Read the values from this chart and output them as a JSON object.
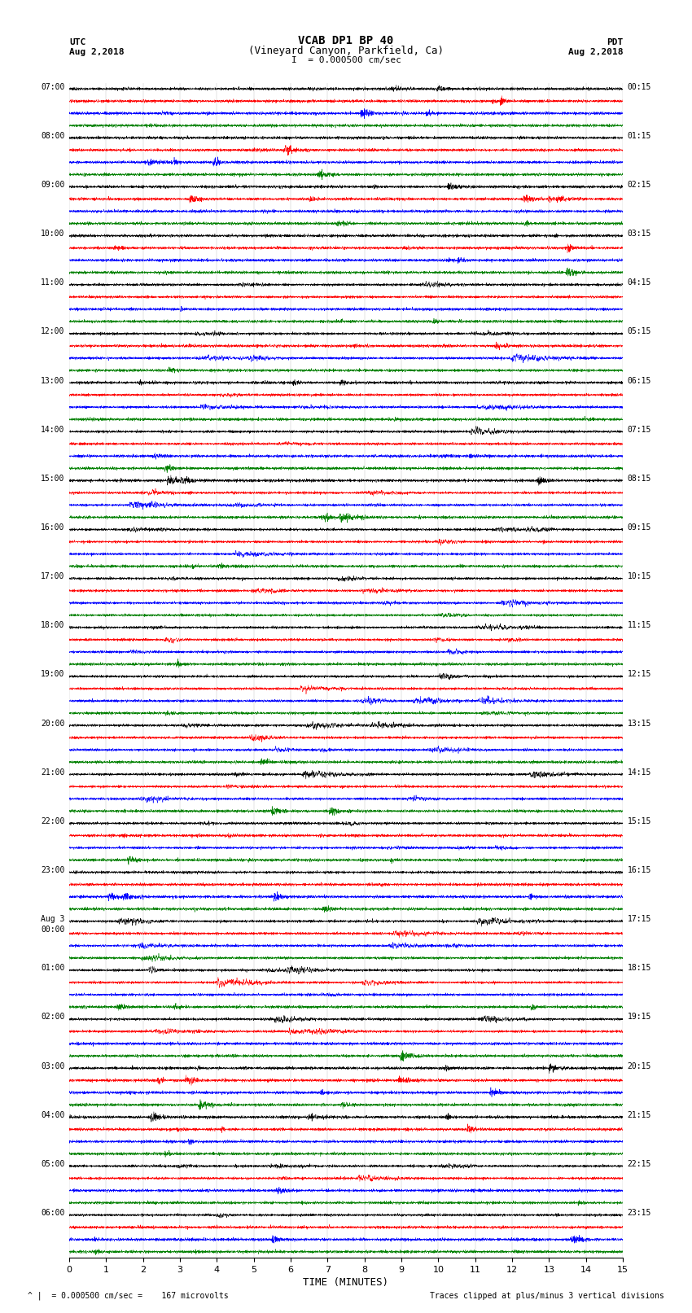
{
  "title_line1": "VCAB DP1 BP 40",
  "title_line2": "(Vineyard Canyon, Parkfield, Ca)",
  "scale_label": "I  = 0.000500 cm/sec",
  "utc_label": "UTC",
  "utc_date": "Aug 2,2018",
  "pdt_label": "PDT",
  "pdt_date": "Aug 2,2018",
  "xlabel": "TIME (MINUTES)",
  "footer_left": "^ |  = 0.000500 cm/sec =    167 microvolts",
  "footer_right": "Traces clipped at plus/minus 3 vertical divisions",
  "xlim": [
    0,
    15
  ],
  "xticks": [
    0,
    1,
    2,
    3,
    4,
    5,
    6,
    7,
    8,
    9,
    10,
    11,
    12,
    13,
    14,
    15
  ],
  "colors": [
    "black",
    "red",
    "blue",
    "green"
  ],
  "background_color": "white",
  "fig_width": 8.5,
  "fig_height": 16.13,
  "dpi": 100,
  "total_rows": 96,
  "utc_labels": [
    "07:00",
    "08:00",
    "09:00",
    "10:00",
    "11:00",
    "12:00",
    "13:00",
    "14:00",
    "15:00",
    "16:00",
    "17:00",
    "18:00",
    "19:00",
    "20:00",
    "21:00",
    "22:00",
    "23:00",
    "Aug 3\n00:00",
    "01:00",
    "02:00",
    "03:00",
    "04:00",
    "05:00",
    "06:00"
  ],
  "pdt_labels": [
    "00:15",
    "01:15",
    "02:15",
    "03:15",
    "04:15",
    "05:15",
    "06:15",
    "07:15",
    "08:15",
    "09:15",
    "10:15",
    "11:15",
    "12:15",
    "13:15",
    "14:15",
    "15:15",
    "16:15",
    "17:15",
    "18:15",
    "19:15",
    "20:15",
    "21:15",
    "22:15",
    "23:15"
  ]
}
